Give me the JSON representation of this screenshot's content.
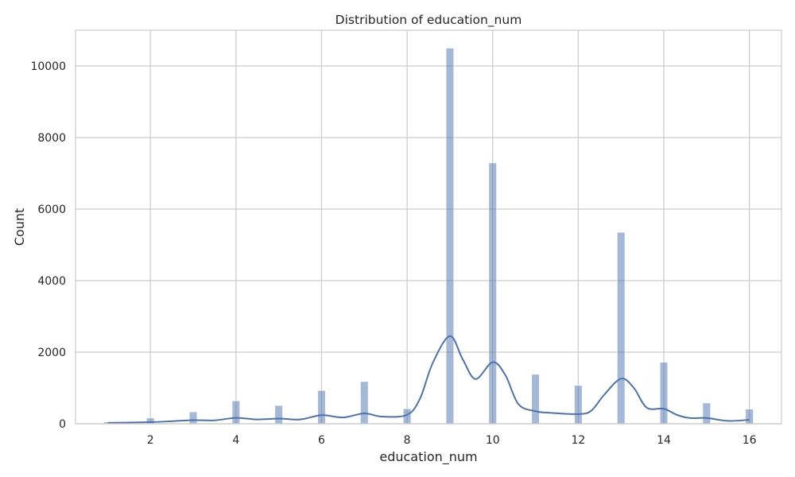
{
  "chart_data": {
    "type": "bar",
    "title": "Distribution of education_num",
    "xlabel": "education_num",
    "ylabel": "Count",
    "xlim": [
      0.25,
      16.75
    ],
    "ylim": [
      0,
      11000
    ],
    "xticks": [
      2,
      4,
      6,
      8,
      10,
      12,
      14,
      16
    ],
    "yticks": [
      0,
      2000,
      4000,
      6000,
      8000,
      10000
    ],
    "grid": true,
    "bar_width": 0.18,
    "bar_color": "#4c72b0",
    "line_color": "#4c72b0",
    "series": [
      {
        "kind": "histogram",
        "x": [
          1,
          2,
          3,
          4,
          5,
          6,
          7,
          8,
          9,
          10,
          11,
          12,
          13,
          14,
          15,
          16
        ],
        "values": [
          50,
          160,
          330,
          640,
          510,
          930,
          1180,
          420,
          10500,
          7290,
          1380,
          1070,
          5350,
          1720,
          580,
          410
        ]
      },
      {
        "kind": "kde",
        "x": [
          1,
          2,
          2.5,
          3,
          3.5,
          4,
          4.5,
          5,
          5.5,
          6,
          6.5,
          7,
          7.4,
          8,
          8.3,
          8.6,
          9,
          9.3,
          9.6,
          10,
          10.3,
          10.6,
          11,
          11.4,
          12,
          12.3,
          12.6,
          13,
          13.3,
          13.6,
          14,
          14.3,
          14.6,
          15,
          15.5,
          16
        ],
        "values": [
          25,
          45,
          70,
          100,
          95,
          165,
          120,
          145,
          120,
          240,
          175,
          290,
          200,
          250,
          700,
          1700,
          2450,
          1800,
          1250,
          1720,
          1350,
          550,
          350,
          300,
          270,
          360,
          800,
          1260,
          1000,
          450,
          420,
          250,
          160,
          160,
          80,
          110
        ]
      }
    ]
  }
}
